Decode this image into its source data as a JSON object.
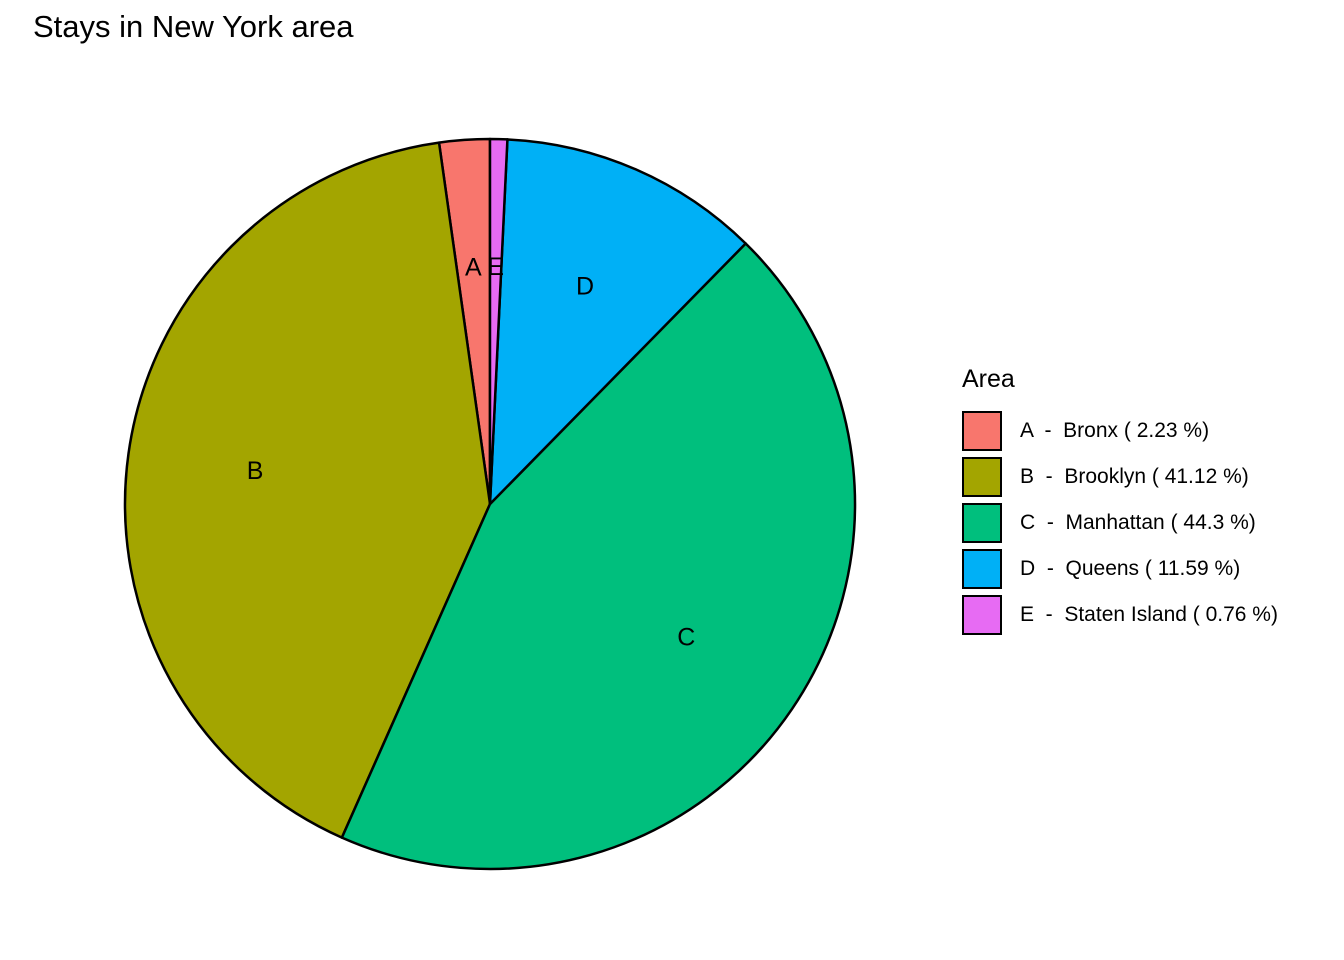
{
  "chart_data": {
    "type": "pie",
    "title": "Stays in New York area",
    "legend_title": "Area",
    "legend_position": "right",
    "slices": [
      {
        "key": "A",
        "label": "A",
        "legend": "A  -  Bronx ( 2.23 %)",
        "value": 2.23,
        "color": "#F8766D"
      },
      {
        "key": "B",
        "label": "B",
        "legend": "B  -  Brooklyn ( 41.12 %)",
        "value": 41.12,
        "color": "#A3A500"
      },
      {
        "key": "C",
        "label": "C",
        "legend": "C  -  Manhattan ( 44.3 %)",
        "value": 44.3,
        "color": "#00BF7D"
      },
      {
        "key": "D",
        "label": "D",
        "legend": "D  -  Queens ( 11.59 %)",
        "value": 11.59,
        "color": "#00B0F6"
      },
      {
        "key": "E",
        "label": "E",
        "legend": "E  -  Staten Island ( 0.76 %)",
        "value": 0.76,
        "color": "#E76BF3"
      }
    ]
  }
}
